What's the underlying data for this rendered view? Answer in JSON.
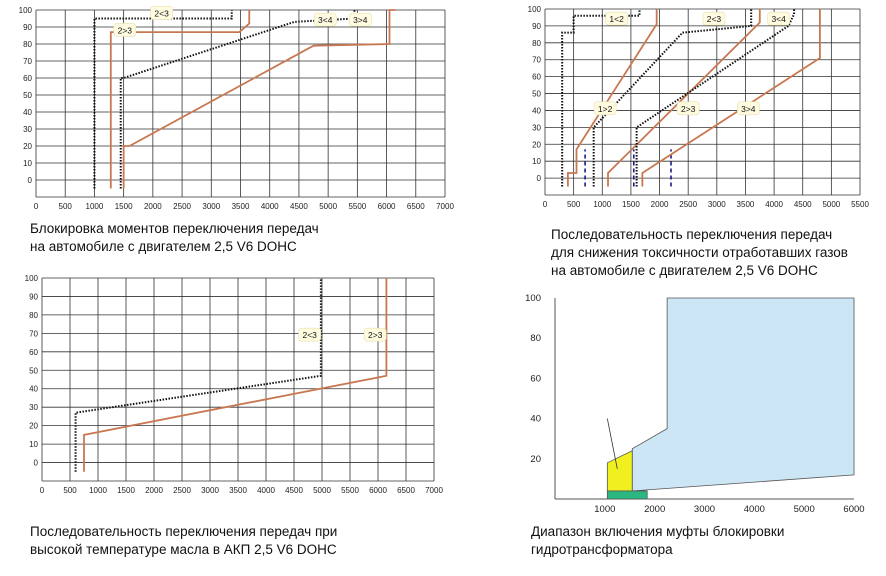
{
  "captions": {
    "c1": [
      "Блокировка моментов переключения передач",
      "на автомобиле с двигателем 2,5 V6 DOHC"
    ],
    "c2": [
      "Последовательность переключения передач",
      "для снижения токсичности отработавших газов",
      "на автомобиле с двигателем 2,5 V6 DOHC"
    ],
    "c3": [
      "Последовательность переключения передач при",
      "высокой температуре масла в АКП 2,5 V6 DOHC"
    ],
    "c4": [
      "Диапазон включения муфты блокировки",
      "гидротрансформатора"
    ]
  },
  "chart_data": [
    {
      "id": "shift-lock",
      "type": "line",
      "xlim": [
        0,
        7000
      ],
      "ylim": [
        0,
        100
      ],
      "x_ticks": [
        0,
        500,
        1000,
        1500,
        2000,
        2500,
        3000,
        3500,
        4000,
        4500,
        5000,
        5500,
        6000,
        6500,
        7000
      ],
      "y_ticks": [
        0,
        10,
        20,
        30,
        40,
        50,
        60,
        70,
        80,
        90,
        100
      ],
      "grid": true,
      "series": [
        {
          "name": "2<3",
          "style": "dotted",
          "color": "#111111",
          "x": [
            1000,
            1000,
            3350,
            3350
          ],
          "y": [
            -5,
            95,
            95,
            100
          ]
        },
        {
          "name": "2>3",
          "style": "solid",
          "color": "#c87850",
          "x": [
            1280,
            1280,
            3480,
            3650,
            3650
          ],
          "y": [
            -5,
            87,
            87,
            92,
            100
          ]
        },
        {
          "name": "3<4",
          "style": "dotted",
          "color": "#111111",
          "x": [
            1450,
            1450,
            1500,
            4420,
            5450,
            5450
          ],
          "y": [
            -5,
            60,
            60,
            93,
            95,
            100
          ]
        },
        {
          "name": "3>4",
          "style": "solid",
          "color": "#c87850",
          "x": [
            1500,
            1500,
            1600,
            4750,
            6050,
            6050,
            6150
          ],
          "y": [
            -5,
            20,
            20,
            79,
            80,
            100,
            100
          ]
        }
      ],
      "annotations": [
        {
          "text": "2<3",
          "x": 2150,
          "y": 98
        },
        {
          "text": "2>3",
          "x": 1520,
          "y": 88
        },
        {
          "text": "3<4",
          "x": 4950,
          "y": 94
        },
        {
          "text": "3>4",
          "x": 5550,
          "y": 94
        }
      ]
    },
    {
      "id": "emission",
      "type": "line",
      "xlim": [
        0,
        5500
      ],
      "ylim": [
        0,
        100
      ],
      "x_ticks": [
        0,
        500,
        1000,
        1500,
        2000,
        2500,
        3000,
        3500,
        4000,
        4500,
        5000,
        5500
      ],
      "y_ticks": [
        0,
        10,
        20,
        30,
        40,
        50,
        60,
        70,
        80,
        90,
        100
      ],
      "grid": true,
      "series": [
        {
          "name": "1<2",
          "style": "dotted",
          "color": "#111111",
          "x": [
            300,
            300,
            500,
            500,
            1650,
            1650
          ],
          "y": [
            -5,
            86,
            86,
            96,
            96,
            100
          ]
        },
        {
          "name": "1>2",
          "style": "solid",
          "color": "#c87850",
          "x": [
            400,
            400,
            550,
            550,
            1950,
            1950
          ],
          "y": [
            -5,
            3,
            3,
            17,
            91,
            100
          ]
        },
        {
          "name": "2<3",
          "style": "dotted",
          "color": "#111111",
          "x": [
            850,
            850,
            2400,
            3600,
            3600
          ],
          "y": [
            -5,
            30,
            86,
            90,
            100
          ]
        },
        {
          "name": "2>3",
          "style": "solid",
          "color": "#c87850",
          "x": [
            1100,
            1100,
            3750,
            3750
          ],
          "y": [
            -5,
            3,
            92,
            100
          ]
        },
        {
          "name": "3<4",
          "style": "dotted",
          "color": "#111111",
          "x": [
            1600,
            1600,
            4250,
            4350,
            4350
          ],
          "y": [
            -5,
            30,
            90,
            97,
            100
          ]
        },
        {
          "name": "3>4",
          "style": "solid",
          "color": "#c87850",
          "x": [
            1700,
            1700,
            4800,
            4800
          ],
          "y": [
            -5,
            3,
            71,
            100
          ]
        }
      ],
      "markers": [
        {
          "style": "dashed",
          "color": "#1a1a8c",
          "x": 700,
          "y": [
            -5,
            17
          ]
        },
        {
          "style": "dashed",
          "color": "#1a1a8c",
          "x": 1550,
          "y": [
            -5,
            17
          ]
        },
        {
          "style": "dashed",
          "color": "#1a1a8c",
          "x": 2200,
          "y": [
            -5,
            17
          ]
        }
      ],
      "annotations": [
        {
          "text": "1<2",
          "x": 1250,
          "y": 94
        },
        {
          "text": "2<3",
          "x": 2950,
          "y": 94
        },
        {
          "text": "3<4",
          "x": 4080,
          "y": 94
        },
        {
          "text": "1>2",
          "x": 1050,
          "y": 41
        },
        {
          "text": "2>3",
          "x": 2500,
          "y": 41
        },
        {
          "text": "3>4",
          "x": 3550,
          "y": 41
        }
      ]
    },
    {
      "id": "high-oil-temp",
      "type": "line",
      "xlim": [
        0,
        7000
      ],
      "ylim": [
        0,
        100
      ],
      "x_ticks": [
        0,
        500,
        1000,
        1500,
        2000,
        2500,
        3000,
        3500,
        4000,
        4500,
        5000,
        5500,
        6000,
        6500,
        7000
      ],
      "y_ticks": [
        0,
        10,
        20,
        30,
        40,
        50,
        60,
        70,
        80,
        90,
        100
      ],
      "grid": true,
      "series": [
        {
          "name": "2<3",
          "style": "dotted",
          "color": "#111111",
          "x": [
            600,
            600,
            4980,
            4980
          ],
          "y": [
            -5,
            27,
            47,
            100
          ]
        },
        {
          "name": "2>3",
          "style": "solid",
          "color": "#c87850",
          "x": [
            750,
            750,
            6150,
            6150
          ],
          "y": [
            -5,
            15,
            47,
            100
          ]
        }
      ],
      "annotations": [
        {
          "text": "2<3",
          "x": 4780,
          "y": 69
        },
        {
          "text": "2>3",
          "x": 5950,
          "y": 69
        }
      ]
    },
    {
      "id": "lockup-range",
      "type": "area",
      "xlim": [
        0,
        6000
      ],
      "ylim": [
        0,
        100
      ],
      "x_ticks": [
        1000,
        2000,
        3000,
        4000,
        5000,
        6000
      ],
      "y_ticks": [
        20,
        40,
        60,
        80,
        100
      ],
      "grid": false,
      "regions": [
        {
          "color": "#cce6f5",
          "x": [
            1550,
            2250,
            2250,
            6000,
            6000,
            1550
          ],
          "y": [
            25,
            35,
            100,
            100,
            12,
            4
          ]
        },
        {
          "color": "#f0f020",
          "x": [
            1050,
            1550,
            1550,
            1050
          ],
          "y": [
            18,
            24,
            4,
            4
          ]
        },
        {
          "color": "#2ab880",
          "x": [
            1050,
            1850,
            1850,
            1050
          ],
          "y": [
            4,
            4,
            0,
            0
          ]
        }
      ]
    }
  ]
}
